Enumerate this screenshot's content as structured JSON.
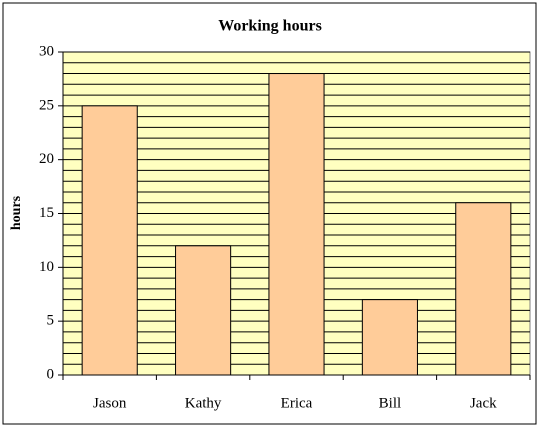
{
  "chart_data": {
    "type": "bar",
    "title": "Working hours",
    "y_label": "hours",
    "categories": [
      "Jason",
      "Kathy",
      "Erica",
      "Bill",
      "Jack"
    ],
    "values": [
      25,
      12,
      28,
      7,
      16
    ],
    "color": "#ffcc99",
    "ylim": [
      0,
      30
    ],
    "yticks": [
      0,
      5,
      10,
      15,
      20,
      25,
      30
    ],
    "yminorticks": [
      1,
      2,
      3,
      4,
      6,
      7,
      8,
      9,
      11,
      12,
      13,
      14,
      16,
      17,
      18,
      19,
      21,
      22,
      23,
      24,
      26,
      27,
      28,
      29
    ],
    "grid": true,
    "plot_background": "#ffffc0"
  }
}
